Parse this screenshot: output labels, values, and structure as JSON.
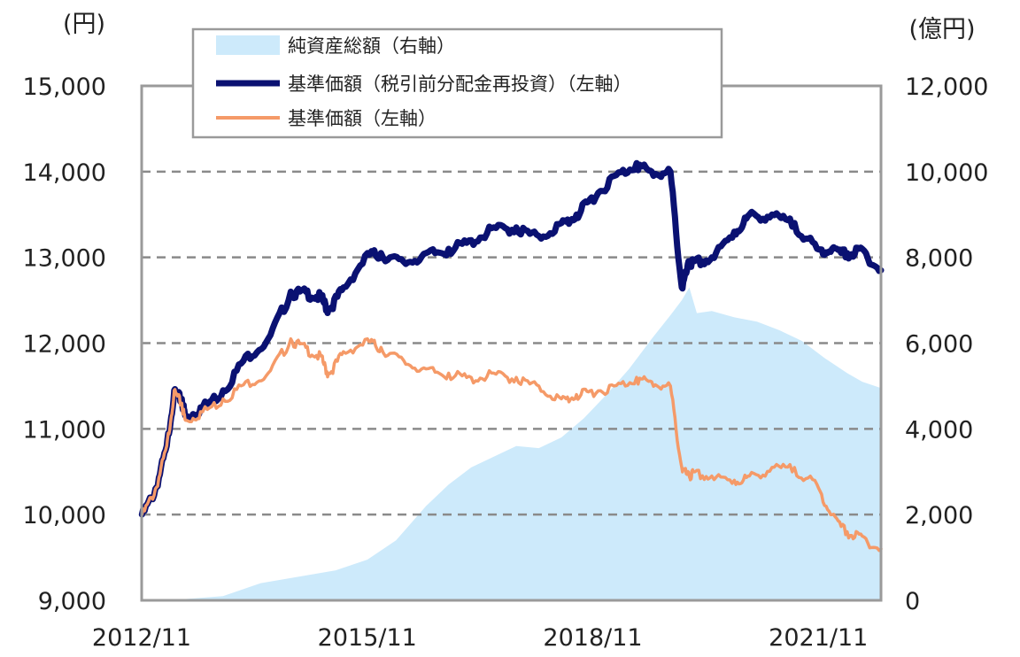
{
  "chart_data": {
    "type": "line",
    "left_unit": "(円)",
    "right_unit": "(億円)",
    "left_axis": {
      "ylim": [
        9000,
        15000
      ],
      "ticks": [
        "9,000",
        "10,000",
        "11,000",
        "12,000",
        "13,000",
        "14,000",
        "15,000"
      ]
    },
    "right_axis": {
      "ylim": [
        0,
        12000
      ],
      "ticks": [
        "0",
        "2,000",
        "4,000",
        "6,000",
        "8,000",
        "10,000",
        "12,000"
      ]
    },
    "x_ticks": [
      "2012/11",
      "2015/11",
      "2018/11",
      "2021/11"
    ],
    "x_tick_years": [
      2012.917,
      2015.917,
      2018.917,
      2021.917
    ],
    "x_range": [
      2012.917,
      2022.75
    ],
    "grid": "dashed-horizontal",
    "legend_position": "top-center",
    "series": [
      {
        "name": "純資産総額（右軸）",
        "type": "area",
        "axis": "right",
        "color": "#cdeafb",
        "x": [
          2012.92,
          2013.5,
          2014.0,
          2014.5,
          2015.0,
          2015.5,
          2015.92,
          2016.3,
          2016.7,
          2017.0,
          2017.3,
          2017.6,
          2017.9,
          2018.2,
          2018.5,
          2018.8,
          2019.1,
          2019.4,
          2019.7,
          2019.95,
          2020.1,
          2020.2,
          2020.3,
          2020.5,
          2020.8,
          2021.1,
          2021.4,
          2021.7,
          2022.0,
          2022.3,
          2022.5,
          2022.75
        ],
        "y": [
          0,
          30,
          100,
          400,
          550,
          700,
          950,
          1400,
          2200,
          2700,
          3100,
          3350,
          3600,
          3550,
          3800,
          4250,
          4800,
          5400,
          6100,
          6650,
          7000,
          7300,
          6700,
          6750,
          6600,
          6500,
          6300,
          6050,
          5650,
          5300,
          5100,
          4950
        ]
      },
      {
        "name": "基準価額（税引前分配金再投資）（左軸）",
        "type": "line",
        "axis": "left",
        "color": "#0a1172",
        "x": [
          2012.92,
          2013.1,
          2013.25,
          2013.35,
          2013.45,
          2013.5,
          2013.7,
          2014.0,
          2014.3,
          2014.6,
          2014.9,
          2015.1,
          2015.3,
          2015.4,
          2015.6,
          2015.92,
          2016.1,
          2016.4,
          2016.7,
          2017.0,
          2017.3,
          2017.6,
          2017.9,
          2018.2,
          2018.5,
          2018.7,
          2018.9,
          2019.2,
          2019.5,
          2019.7,
          2019.95,
          2020.1,
          2020.2,
          2020.25,
          2020.5,
          2020.8,
          2021.0,
          2021.3,
          2021.6,
          2021.9,
          2022.1,
          2022.3,
          2022.5,
          2022.75
        ],
        "y": [
          10000,
          10300,
          10800,
          11450,
          11350,
          11150,
          11250,
          11450,
          11850,
          12050,
          12600,
          12600,
          12550,
          12400,
          12650,
          13050,
          13050,
          12950,
          13050,
          13100,
          13200,
          13350,
          13350,
          13250,
          13400,
          13500,
          13700,
          13950,
          14100,
          14000,
          14000,
          12650,
          12950,
          12950,
          13000,
          13300,
          13500,
          13500,
          13400,
          13100,
          13100,
          13050,
          13100,
          12850
        ]
      },
      {
        "name": "基準価額（左軸）",
        "type": "line",
        "axis": "left",
        "color": "#f59a68",
        "x": [
          2012.92,
          2013.1,
          2013.25,
          2013.35,
          2013.45,
          2013.5,
          2013.7,
          2014.0,
          2014.3,
          2014.6,
          2014.9,
          2015.1,
          2015.3,
          2015.4,
          2015.6,
          2015.92,
          2016.1,
          2016.4,
          2016.7,
          2017.0,
          2017.3,
          2017.6,
          2017.9,
          2018.2,
          2018.5,
          2018.7,
          2018.9,
          2019.2,
          2019.5,
          2019.7,
          2019.95,
          2020.1,
          2020.2,
          2020.25,
          2020.5,
          2020.8,
          2021.0,
          2021.3,
          2021.6,
          2021.9,
          2022.1,
          2022.3,
          2022.5,
          2022.75
        ],
        "y": [
          10000,
          10300,
          10800,
          11450,
          11300,
          11100,
          11200,
          11350,
          11550,
          11650,
          12050,
          11950,
          11850,
          11650,
          11900,
          12050,
          11950,
          11800,
          11700,
          11650,
          11600,
          11650,
          11600,
          11500,
          11350,
          11400,
          11450,
          11500,
          11600,
          11550,
          11500,
          10550,
          10450,
          10500,
          10450,
          10400,
          10450,
          10550,
          10550,
          10350,
          10000,
          9800,
          9750,
          9600
        ]
      }
    ]
  }
}
